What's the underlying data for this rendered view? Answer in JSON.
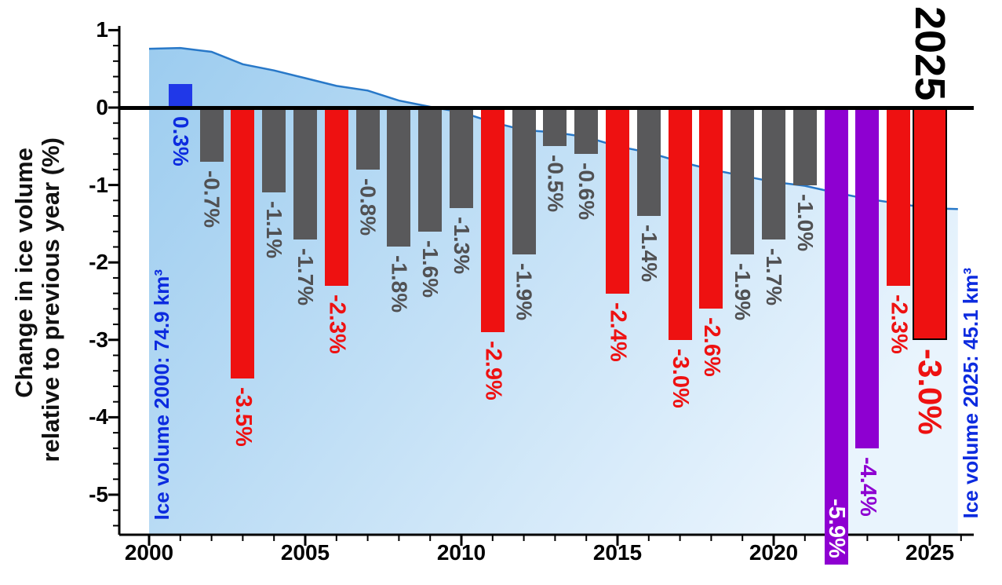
{
  "figure": {
    "big_year_label": "2025",
    "y_axis_title_line1": "Change in ice volume",
    "y_axis_title_line2": "relative to previous year (%)",
    "annotation_left": "Ice volume 2000: 74.9 km³",
    "annotation_right": "Ice volume 2025: 45.1 km³"
  },
  "colors": {
    "bar_gray": "#59595b",
    "bar_red": "#ee1111",
    "bar_blue": "#2038e8",
    "bar_purple": "#8e00d1",
    "label_gray": "#515153",
    "label_blue": "#0c2bdf",
    "label_white": "#ffffff",
    "curve_stroke": "#2878c8",
    "area_top": "#9cccef",
    "area_bottom": "#e9f4fd",
    "axis": "#000000"
  },
  "chart_data": {
    "type": "bar",
    "title": "",
    "xlabel": "",
    "ylabel": "Change in ice volume relative to previous year (%)",
    "ylim": [
      -5.52,
      1.05
    ],
    "xlim": [
      1999.05,
      2026.4
    ],
    "grid": false,
    "y_ticks": [
      1,
      0,
      -1,
      -2,
      -3,
      -4,
      -5
    ],
    "x_ticks": [
      2000,
      2005,
      2010,
      2015,
      2020,
      2025
    ],
    "highlight_year": 2025,
    "label_inside_bar_year": 2022,
    "ice_volume_km3": {
      "2000": 74.9,
      "2025": 45.1
    },
    "series": [
      {
        "name": "annual_change_percent",
        "x": [
          2001,
          2002,
          2003,
          2004,
          2005,
          2006,
          2007,
          2008,
          2009,
          2010,
          2011,
          2012,
          2013,
          2014,
          2015,
          2016,
          2017,
          2018,
          2019,
          2020,
          2021,
          2022,
          2023,
          2024,
          2025
        ],
        "values": [
          0.3,
          -0.7,
          -3.5,
          -1.1,
          -1.7,
          -2.3,
          -0.8,
          -1.8,
          -1.6,
          -1.3,
          -2.9,
          -1.9,
          -0.5,
          -0.6,
          -2.4,
          -1.4,
          -3.0,
          -2.6,
          -1.9,
          -1.7,
          -1.0,
          -5.9,
          -4.4,
          -2.3,
          -3.0
        ],
        "labels": [
          "0.3%",
          "-0.7%",
          "-3.5%",
          "-1.1%",
          "-1.7%",
          "-2.3%",
          "-0.8%",
          "-1.8%",
          "-1.6%",
          "-1.3%",
          "-2.9%",
          "-1.9%",
          "-0.5%",
          "-0.6%",
          "-2.4%",
          "-1.4%",
          "-3.0%",
          "-2.6%",
          "-1.9%",
          "-1.7%",
          "-1.0%",
          "-5.9%",
          "-4.4%",
          "-2.3%",
          "-3.0%"
        ],
        "colors": [
          "blue",
          "gray",
          "red",
          "gray",
          "gray",
          "red",
          "gray",
          "gray",
          "gray",
          "gray",
          "red",
          "gray",
          "gray",
          "gray",
          "red",
          "gray",
          "red",
          "red",
          "gray",
          "gray",
          "gray",
          "purple",
          "purple",
          "red",
          "red"
        ]
      }
    ],
    "background_area": {
      "name": "scaled-ice-volume-curve",
      "x": [
        2000,
        2001,
        2002,
        2003,
        2004,
        2005,
        2006,
        2007,
        2008,
        2009,
        2010,
        2011,
        2012,
        2013,
        2014,
        2015,
        2016,
        2017,
        2018,
        2019,
        2020,
        2021,
        2022,
        2023,
        2024,
        2025,
        2025.9
      ],
      "y_axis_units": [
        0.76,
        0.77,
        0.72,
        0.56,
        0.48,
        0.38,
        0.28,
        0.22,
        0.09,
        0.01,
        -0.06,
        -0.19,
        -0.29,
        -0.32,
        -0.38,
        -0.5,
        -0.58,
        -0.7,
        -0.8,
        -0.88,
        -0.96,
        -1.01,
        -1.1,
        -1.18,
        -1.24,
        -1.3,
        -1.31
      ]
    }
  }
}
